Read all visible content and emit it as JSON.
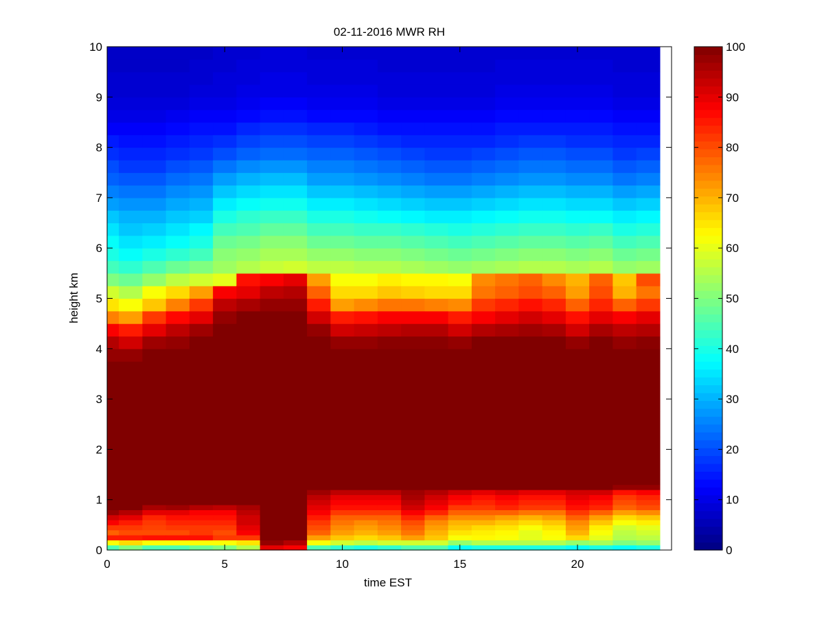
{
  "chart_data": {
    "type": "heatmap",
    "title": "02-11-2016 MWR RH",
    "xlabel": "time EST",
    "ylabel": "height km",
    "xlim": [
      0,
      24
    ],
    "ylim": [
      0,
      10
    ],
    "x_ticks": [
      0,
      5,
      10,
      15,
      20
    ],
    "y_ticks": [
      0,
      1,
      2,
      3,
      4,
      5,
      6,
      7,
      8,
      9,
      10
    ],
    "colormap": "jet",
    "clim": [
      0,
      100
    ],
    "colorbar_ticks": [
      0,
      10,
      20,
      30,
      40,
      50,
      60,
      70,
      80,
      90,
      100
    ],
    "colorbar_position": "right",
    "grid": false,
    "time_EST": [
      0,
      1,
      2,
      3,
      4,
      5,
      6,
      7,
      8,
      9,
      10,
      11,
      12,
      13,
      14,
      15,
      16,
      17,
      18,
      19,
      20,
      21,
      22,
      23
    ],
    "height_km": [
      0,
      0.1,
      0.2,
      0.3,
      0.4,
      0.5,
      0.6,
      0.7,
      0.8,
      0.9,
      1.0,
      1.1,
      1.2,
      1.3,
      1.4,
      1.5,
      1.6,
      1.7,
      1.8,
      1.9,
      2.0,
      2.25,
      2.5,
      2.75,
      3.0,
      3.25,
      3.5,
      3.75,
      4.0,
      4.25,
      4.5,
      4.75,
      5.0,
      5.25,
      5.5,
      5.75,
      6.0,
      6.25,
      6.5,
      6.75,
      7.0,
      7.25,
      7.5,
      7.75,
      8.0,
      8.25,
      8.5,
      8.75,
      9.0,
      9.25,
      9.5,
      9.75
    ],
    "rh_percent": [
      [
        45,
        62,
        85,
        78,
        82,
        88,
        92,
        98,
        100,
        100,
        100,
        100,
        100,
        100,
        100,
        100,
        100,
        100,
        100,
        100,
        100,
        100,
        100,
        100,
        100,
        100,
        100,
        98,
        95,
        88,
        75,
        65,
        58,
        50,
        44,
        40,
        38,
        35,
        32,
        28,
        25,
        22,
        20,
        17,
        15,
        12,
        10,
        9,
        8,
        8,
        7,
        7
      ],
      [
        50,
        66,
        85,
        80,
        82,
        85,
        90,
        95,
        100,
        100,
        100,
        100,
        100,
        100,
        100,
        100,
        100,
        100,
        100,
        100,
        100,
        100,
        100,
        100,
        100,
        100,
        100,
        98,
        92,
        85,
        72,
        62,
        55,
        48,
        42,
        38,
        35,
        32,
        30,
        27,
        24,
        21,
        18,
        16,
        14,
        12,
        10,
        9,
        8,
        8,
        7,
        7
      ],
      [
        45,
        62,
        86,
        80,
        81,
        82,
        84,
        90,
        96,
        100,
        100,
        100,
        100,
        100,
        100,
        100,
        100,
        100,
        100,
        100,
        100,
        100,
        100,
        100,
        100,
        100,
        100,
        100,
        97,
        90,
        82,
        68,
        62,
        52,
        45,
        40,
        36,
        33,
        30,
        27,
        24,
        21,
        18,
        16,
        14,
        12,
        10,
        9,
        8,
        8,
        7,
        7
      ],
      [
        45,
        62,
        86,
        80,
        82,
        84,
        86,
        90,
        97,
        100,
        100,
        100,
        100,
        100,
        100,
        100,
        100,
        100,
        100,
        100,
        100,
        100,
        100,
        100,
        100,
        100,
        100,
        100,
        98,
        94,
        87,
        75,
        66,
        56,
        48,
        42,
        38,
        35,
        32,
        29,
        26,
        23,
        20,
        17,
        15,
        13,
        11,
        9,
        8,
        8,
        7,
        7
      ],
      [
        48,
        62,
        86,
        82,
        82,
        84,
        86,
        88,
        95,
        100,
        100,
        100,
        100,
        100,
        100,
        100,
        100,
        100,
        100,
        100,
        100,
        100,
        100,
        100,
        100,
        100,
        100,
        100,
        100,
        97,
        90,
        82,
        72,
        58,
        50,
        44,
        40,
        37,
        33,
        30,
        27,
        24,
        21,
        18,
        16,
        14,
        12,
        10,
        9,
        8,
        8,
        7
      ],
      [
        50,
        62,
        82,
        80,
        82,
        84,
        86,
        88,
        94,
        100,
        100,
        100,
        100,
        100,
        100,
        100,
        100,
        100,
        100,
        100,
        100,
        100,
        100,
        100,
        100,
        100,
        100,
        100,
        100,
        100,
        98,
        94,
        88,
        60,
        53,
        51,
        48,
        44,
        40,
        36,
        32,
        28,
        24,
        20,
        17,
        14,
        12,
        10,
        9,
        9,
        8,
        8
      ],
      [
        55,
        65,
        82,
        88,
        90,
        92,
        92,
        94,
        96,
        100,
        100,
        100,
        100,
        100,
        100,
        100,
        100,
        100,
        100,
        100,
        100,
        100,
        100,
        100,
        100,
        100,
        100,
        100,
        100,
        100,
        100,
        96,
        90,
        86,
        55,
        52,
        49,
        45,
        42,
        38,
        34,
        30,
        26,
        22,
        19,
        16,
        13,
        11,
        10,
        9,
        9,
        8
      ],
      [
        90,
        98,
        100,
        100,
        100,
        100,
        100,
        100,
        100,
        100,
        100,
        100,
        100,
        100,
        100,
        100,
        100,
        100,
        100,
        100,
        100,
        100,
        100,
        100,
        100,
        100,
        100,
        100,
        100,
        100,
        100,
        98,
        94,
        88,
        57,
        54,
        51,
        47,
        43,
        39,
        35,
        31,
        27,
        23,
        20,
        17,
        14,
        12,
        10,
        10,
        9,
        9
      ],
      [
        88,
        95,
        100,
        100,
        100,
        100,
        100,
        100,
        100,
        100,
        100,
        100,
        100,
        100,
        100,
        100,
        100,
        100,
        100,
        100,
        100,
        100,
        100,
        100,
        100,
        100,
        100,
        100,
        100,
        100,
        100,
        98,
        95,
        90,
        58,
        54,
        51,
        47,
        43,
        39,
        35,
        31,
        27,
        23,
        20,
        17,
        14,
        12,
        10,
        10,
        9,
        9
      ],
      [
        45,
        62,
        72,
        78,
        80,
        82,
        85,
        88,
        90,
        92,
        94,
        97,
        100,
        100,
        100,
        100,
        100,
        100,
        100,
        100,
        100,
        100,
        100,
        100,
        100,
        100,
        100,
        100,
        100,
        98,
        92,
        85,
        78,
        72,
        56,
        52,
        48,
        44,
        40,
        36,
        32,
        28,
        25,
        22,
        19,
        16,
        13,
        11,
        10,
        9,
        9,
        8
      ],
      [
        42,
        58,
        68,
        72,
        74,
        76,
        78,
        82,
        86,
        88,
        90,
        94,
        100,
        100,
        100,
        100,
        100,
        100,
        100,
        100,
        100,
        100,
        100,
        100,
        100,
        100,
        100,
        100,
        98,
        92,
        85,
        72,
        66,
        62,
        56,
        52,
        48,
        44,
        40,
        36,
        32,
        28,
        25,
        22,
        19,
        16,
        13,
        11,
        10,
        9,
        9,
        8
      ],
      [
        40,
        56,
        66,
        70,
        72,
        74,
        78,
        82,
        86,
        88,
        90,
        94,
        100,
        100,
        100,
        100,
        100,
        100,
        100,
        100,
        100,
        100,
        100,
        100,
        100,
        100,
        100,
        100,
        98,
        93,
        86,
        74,
        66,
        62,
        55,
        51,
        47,
        43,
        39,
        35,
        31,
        27,
        24,
        21,
        18,
        15,
        13,
        11,
        10,
        9,
        9,
        8
      ],
      [
        42,
        58,
        68,
        72,
        74,
        76,
        78,
        82,
        86,
        88,
        90,
        94,
        100,
        100,
        100,
        100,
        100,
        100,
        100,
        100,
        100,
        100,
        100,
        100,
        100,
        100,
        100,
        100,
        99,
        94,
        88,
        76,
        68,
        64,
        55,
        51,
        47,
        43,
        38,
        34,
        30,
        26,
        23,
        20,
        17,
        14,
        12,
        10,
        9,
        9,
        8,
        8
      ],
      [
        45,
        58,
        72,
        76,
        78,
        80,
        84,
        88,
        92,
        94,
        96,
        97,
        100,
        100,
        100,
        100,
        100,
        100,
        100,
        100,
        100,
        100,
        100,
        100,
        100,
        100,
        100,
        100,
        99,
        95,
        88,
        76,
        67,
        63,
        54,
        50,
        46,
        42,
        37,
        33,
        29,
        25,
        22,
        19,
        16,
        14,
        12,
        10,
        9,
        9,
        8,
        8
      ],
      [
        45,
        58,
        68,
        70,
        72,
        74,
        78,
        84,
        88,
        90,
        92,
        95,
        100,
        100,
        100,
        100,
        100,
        100,
        100,
        100,
        100,
        100,
        100,
        100,
        100,
        100,
        100,
        100,
        99,
        95,
        88,
        75,
        66,
        63,
        53,
        49,
        45,
        41,
        36,
        32,
        28,
        24,
        21,
        18,
        16,
        14,
        12,
        10,
        9,
        9,
        8,
        8
      ],
      [
        38,
        52,
        62,
        65,
        68,
        70,
        74,
        78,
        82,
        86,
        88,
        92,
        100,
        100,
        100,
        100,
        100,
        100,
        100,
        100,
        100,
        100,
        100,
        100,
        100,
        100,
        100,
        100,
        98,
        92,
        85,
        74,
        66,
        62,
        52,
        48,
        44,
        40,
        36,
        32,
        28,
        24,
        21,
        18,
        16,
        14,
        12,
        10,
        9,
        9,
        8,
        8
      ],
      [
        40,
        55,
        63,
        64,
        66,
        70,
        74,
        78,
        82,
        84,
        86,
        90,
        100,
        100,
        100,
        100,
        100,
        100,
        100,
        100,
        100,
        100,
        100,
        100,
        100,
        100,
        100,
        100,
        100,
        95,
        88,
        82,
        76,
        74,
        53,
        49,
        45,
        41,
        37,
        33,
        29,
        25,
        22,
        19,
        16,
        14,
        12,
        10,
        9,
        9,
        8,
        8
      ],
      [
        40,
        55,
        62,
        63,
        65,
        68,
        72,
        78,
        84,
        86,
        88,
        92,
        100,
        100,
        100,
        100,
        100,
        100,
        100,
        100,
        100,
        100,
        100,
        100,
        100,
        100,
        100,
        100,
        100,
        96,
        90,
        84,
        78,
        76,
        54,
        50,
        46,
        42,
        38,
        34,
        30,
        26,
        23,
        20,
        17,
        15,
        13,
        11,
        10,
        9,
        9,
        8
      ],
      [
        40,
        55,
        60,
        60,
        62,
        66,
        70,
        76,
        82,
        84,
        86,
        90,
        100,
        100,
        100,
        100,
        100,
        100,
        100,
        100,
        100,
        100,
        100,
        100,
        100,
        100,
        100,
        100,
        100,
        97,
        92,
        86,
        80,
        78,
        55,
        51,
        47,
        43,
        39,
        35,
        31,
        27,
        24,
        21,
        18,
        15,
        13,
        11,
        10,
        9,
        9,
        8
      ],
      [
        40,
        55,
        62,
        63,
        65,
        68,
        72,
        76,
        82,
        84,
        86,
        90,
        100,
        100,
        100,
        100,
        100,
        100,
        100,
        100,
        100,
        100,
        100,
        100,
        100,
        100,
        100,
        100,
        100,
        96,
        90,
        84,
        78,
        74,
        55,
        51,
        47,
        43,
        39,
        35,
        31,
        27,
        24,
        21,
        18,
        15,
        13,
        11,
        10,
        9,
        9,
        8
      ],
      [
        38,
        52,
        66,
        70,
        72,
        74,
        78,
        82,
        86,
        88,
        90,
        92,
        100,
        100,
        100,
        100,
        100,
        100,
        100,
        100,
        100,
        100,
        100,
        100,
        100,
        100,
        100,
        100,
        98,
        92,
        86,
        78,
        72,
        70,
        54,
        50,
        46,
        42,
        38,
        34,
        30,
        26,
        23,
        20,
        17,
        15,
        13,
        11,
        10,
        9,
        9,
        8
      ],
      [
        40,
        54,
        60,
        62,
        64,
        68,
        72,
        78,
        84,
        86,
        88,
        92,
        100,
        100,
        100,
        100,
        100,
        100,
        100,
        100,
        100,
        100,
        100,
        100,
        100,
        100,
        100,
        100,
        100,
        96,
        90,
        84,
        80,
        78,
        55,
        51,
        47,
        43,
        38,
        34,
        30,
        26,
        23,
        20,
        17,
        15,
        13,
        11,
        10,
        9,
        9,
        8
      ],
      [
        38,
        50,
        55,
        56,
        58,
        62,
        66,
        72,
        78,
        80,
        82,
        86,
        98,
        100,
        100,
        100,
        100,
        100,
        100,
        100,
        100,
        100,
        100,
        100,
        100,
        100,
        100,
        100,
        98,
        94,
        88,
        78,
        70,
        68,
        52,
        48,
        44,
        40,
        36,
        32,
        28,
        24,
        21,
        18,
        16,
        14,
        12,
        10,
        9,
        9,
        8,
        8
      ],
      [
        40,
        52,
        56,
        58,
        60,
        64,
        68,
        74,
        80,
        82,
        84,
        88,
        98,
        100,
        100,
        100,
        100,
        100,
        100,
        100,
        100,
        100,
        100,
        100,
        100,
        100,
        100,
        100,
        99,
        95,
        90,
        82,
        76,
        80,
        53,
        49,
        45,
        41,
        37,
        33,
        29,
        25,
        22,
        19,
        16,
        14,
        12,
        10,
        9,
        9,
        8,
        8
      ]
    ]
  }
}
